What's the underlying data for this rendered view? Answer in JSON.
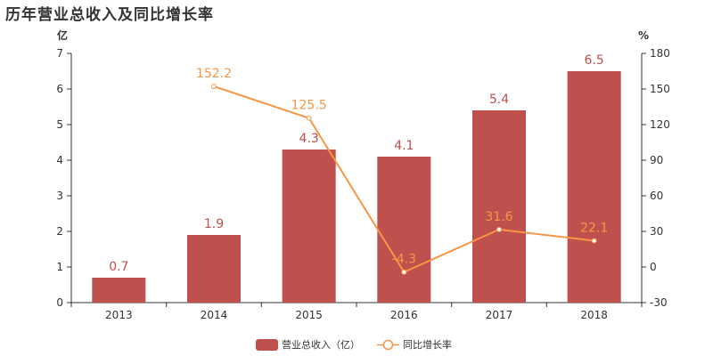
{
  "chart_data": {
    "title": "历年营业总收入及同比增长率",
    "type": "bar",
    "categories": [
      "2013",
      "2014",
      "2015",
      "2016",
      "2017",
      "2018"
    ],
    "series": [
      {
        "name": "营业总收入（亿）",
        "type": "bar",
        "axis": "left",
        "color": "#c0504d",
        "values": [
          0.7,
          1.9,
          4.3,
          4.1,
          5.4,
          6.5
        ],
        "labels": [
          "0.7",
          "1.9",
          "4.3",
          "4.1",
          "5.4",
          "6.5"
        ]
      },
      {
        "name": "同比增长率",
        "type": "line",
        "axis": "right",
        "color": "#f79646",
        "values": [
          null,
          152.2,
          125.5,
          -4.3,
          31.6,
          22.1
        ],
        "labels": [
          "",
          "152.2",
          "125.5",
          "-4.3",
          "31.6",
          "22.1"
        ]
      }
    ],
    "y_left": {
      "unit": "亿",
      "min": 0,
      "max": 7,
      "ticks": [
        0,
        1,
        2,
        3,
        4,
        5,
        6,
        7
      ]
    },
    "y_right": {
      "unit": "%",
      "min": -30,
      "max": 180,
      "ticks": [
        -30,
        0,
        30,
        60,
        90,
        120,
        150,
        180
      ]
    },
    "grid": false,
    "legend": "bottom-center"
  }
}
